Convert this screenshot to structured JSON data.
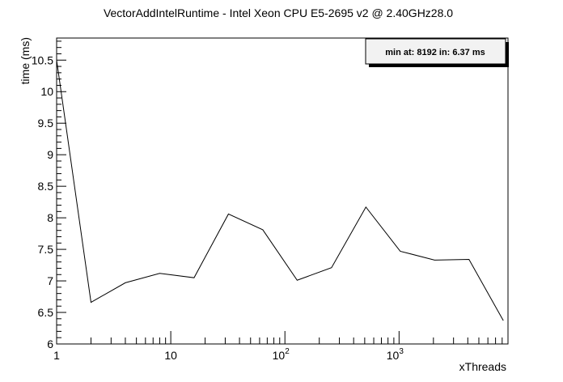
{
  "chart_data": {
    "type": "line",
    "title": "VectorAddIntelRuntime - Intel Xeon CPU E5-2695 v2 @ 2.40GHz28.0",
    "xlabel": "xThreads",
    "ylabel": "time (ms)",
    "xscale": "log",
    "xlim": [
      1,
      9000
    ],
    "ylim": [
      6,
      10.85
    ],
    "legend_text": "min at: 8192 in: 6.37 ms",
    "legend_position": "top-right",
    "grid": false,
    "line_color": "#000000",
    "x_tick_labels": [
      {
        "value": 1,
        "base": "1",
        "exp": ""
      },
      {
        "value": 10,
        "base": "10",
        "exp": ""
      },
      {
        "value": 100,
        "base": "10",
        "exp": "2"
      },
      {
        "value": 1000,
        "base": "10",
        "exp": "3"
      }
    ],
    "y_tick_labels": [
      "6",
      "6.5",
      "7",
      "7.5",
      "8",
      "8.5",
      "9",
      "9.5",
      "10",
      "10.5"
    ],
    "series": [
      {
        "x": [
          1,
          2,
          4,
          8,
          16,
          32,
          64,
          128,
          256,
          512,
          1024,
          2048,
          4096,
          8192
        ],
        "values": [
          10.5,
          6.66,
          6.97,
          7.12,
          7.05,
          8.06,
          7.81,
          7.01,
          7.21,
          8.17,
          7.47,
          7.33,
          7.34,
          6.37
        ]
      }
    ]
  }
}
